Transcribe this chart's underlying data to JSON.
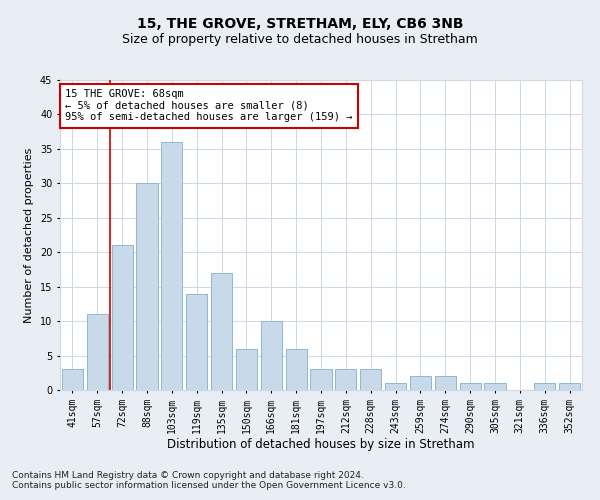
{
  "title1": "15, THE GROVE, STRETHAM, ELY, CB6 3NB",
  "title2": "Size of property relative to detached houses in Stretham",
  "xlabel": "Distribution of detached houses by size in Stretham",
  "ylabel": "Number of detached properties",
  "categories": [
    "41sqm",
    "57sqm",
    "72sqm",
    "88sqm",
    "103sqm",
    "119sqm",
    "135sqm",
    "150sqm",
    "166sqm",
    "181sqm",
    "197sqm",
    "212sqm",
    "228sqm",
    "243sqm",
    "259sqm",
    "274sqm",
    "290sqm",
    "305sqm",
    "321sqm",
    "336sqm",
    "352sqm"
  ],
  "values": [
    3,
    11,
    21,
    30,
    36,
    14,
    17,
    6,
    10,
    6,
    3,
    3,
    3,
    1,
    2,
    2,
    1,
    1,
    0,
    1,
    1
  ],
  "bar_color": "#c8daea",
  "bar_edge_color": "#90b8d4",
  "bar_width": 0.85,
  "ylim": [
    0,
    45
  ],
  "yticks": [
    0,
    5,
    10,
    15,
    20,
    25,
    30,
    35,
    40,
    45
  ],
  "grid_color": "#ccd8e4",
  "annotation_text": "15 THE GROVE: 68sqm\n← 5% of detached houses are smaller (8)\n95% of semi-detached houses are larger (159) →",
  "annotation_box_color": "#ffffff",
  "annotation_box_edge_color": "#cc0000",
  "red_line_x": 1.5,
  "footnote1": "Contains HM Land Registry data © Crown copyright and database right 2024.",
  "footnote2": "Contains public sector information licensed under the Open Government Licence v3.0.",
  "bg_color": "#e8eef4",
  "plot_bg_color": "#ffffff",
  "title1_fontsize": 10,
  "title2_fontsize": 9,
  "xlabel_fontsize": 8.5,
  "ylabel_fontsize": 8,
  "tick_fontsize": 7,
  "footnote_fontsize": 6.5,
  "annotation_fontsize": 7.5
}
